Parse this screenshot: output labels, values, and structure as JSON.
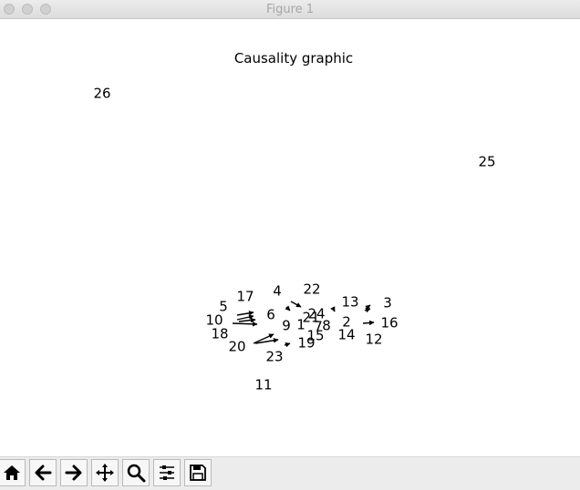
{
  "window": {
    "title": "Figure 1"
  },
  "chart_data": {
    "type": "network",
    "title": "Causality graphic",
    "nodes": [
      {
        "id": "1"
      },
      {
        "id": "2"
      },
      {
        "id": "3"
      },
      {
        "id": "4"
      },
      {
        "id": "5"
      },
      {
        "id": "6"
      },
      {
        "id": "7"
      },
      {
        "id": "8"
      },
      {
        "id": "9"
      },
      {
        "id": "10"
      },
      {
        "id": "11"
      },
      {
        "id": "12"
      },
      {
        "id": "13"
      },
      {
        "id": "14"
      },
      {
        "id": "15"
      },
      {
        "id": "16"
      },
      {
        "id": "17"
      },
      {
        "id": "18"
      },
      {
        "id": "19"
      },
      {
        "id": "20"
      },
      {
        "id": "21"
      },
      {
        "id": "22"
      },
      {
        "id": "23"
      },
      {
        "id": "24"
      },
      {
        "id": "25"
      },
      {
        "id": "26"
      }
    ],
    "edges": [
      [
        "17",
        "10"
      ],
      [
        "5",
        "10"
      ],
      [
        "6",
        "10"
      ],
      [
        "18",
        "10"
      ],
      [
        "20",
        "9"
      ],
      [
        "23",
        "20"
      ],
      [
        "19",
        "23"
      ],
      [
        "4",
        "1"
      ],
      [
        "22",
        "21"
      ],
      [
        "13",
        "3"
      ],
      [
        "3",
        "13"
      ],
      [
        "16",
        "12"
      ],
      [
        "24",
        "21"
      ]
    ]
  },
  "toolbar": {
    "buttons": [
      {
        "name": "home",
        "icon": "home-icon"
      },
      {
        "name": "back",
        "icon": "arrow-left-icon"
      },
      {
        "name": "forward",
        "icon": "arrow-right-icon"
      },
      {
        "name": "pan",
        "icon": "move-icon"
      },
      {
        "name": "zoom",
        "icon": "zoom-icon"
      },
      {
        "name": "configure-subplots",
        "icon": "sliders-icon"
      },
      {
        "name": "save",
        "icon": "save-icon"
      }
    ]
  }
}
